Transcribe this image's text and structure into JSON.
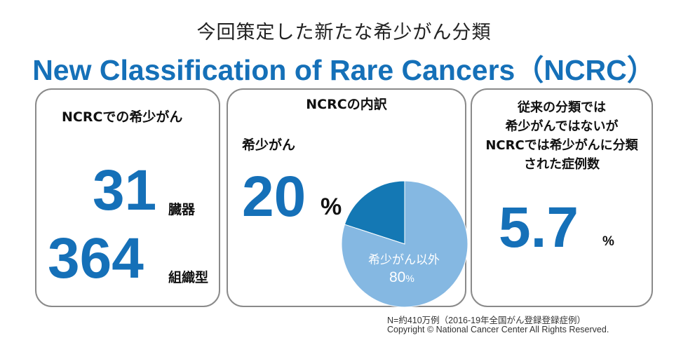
{
  "title_jp": "今回策定した新たな希少がん分類",
  "title_en": "New Classification of Rare Cancers（NCRC）",
  "card1": {
    "heading": "NCRCでの希少がん",
    "organs_value": "31",
    "organs_unit": "臓器",
    "tissue_value": "364",
    "tissue_unit": "組織型"
  },
  "card2": {
    "heading": "NCRCの内訳",
    "rare_label": "希少がん",
    "rare_value": "20",
    "rare_unit": "%",
    "other_label": "希少がん以外",
    "other_value": "80",
    "other_unit": "%"
  },
  "card3": {
    "heading_lines": [
      "従来の分類では",
      "希少がんではないが",
      "NCRCでは希少がんに分類",
      "された症例数"
    ],
    "value": "5.7",
    "unit": "%"
  },
  "footnote": "N=約410万例（2016-19年全国がん登録登録症例）",
  "copyright": "Copyright © National Cancer Center All Rights Reserved.",
  "colors": {
    "accent_blue": "#1570b8",
    "pie_rare": "#1478b4",
    "pie_other": "#85b8e2"
  },
  "chart_data": {
    "type": "pie",
    "title": "NCRCの内訳",
    "categories": [
      "希少がん",
      "希少がん以外"
    ],
    "values": [
      20,
      80
    ]
  }
}
